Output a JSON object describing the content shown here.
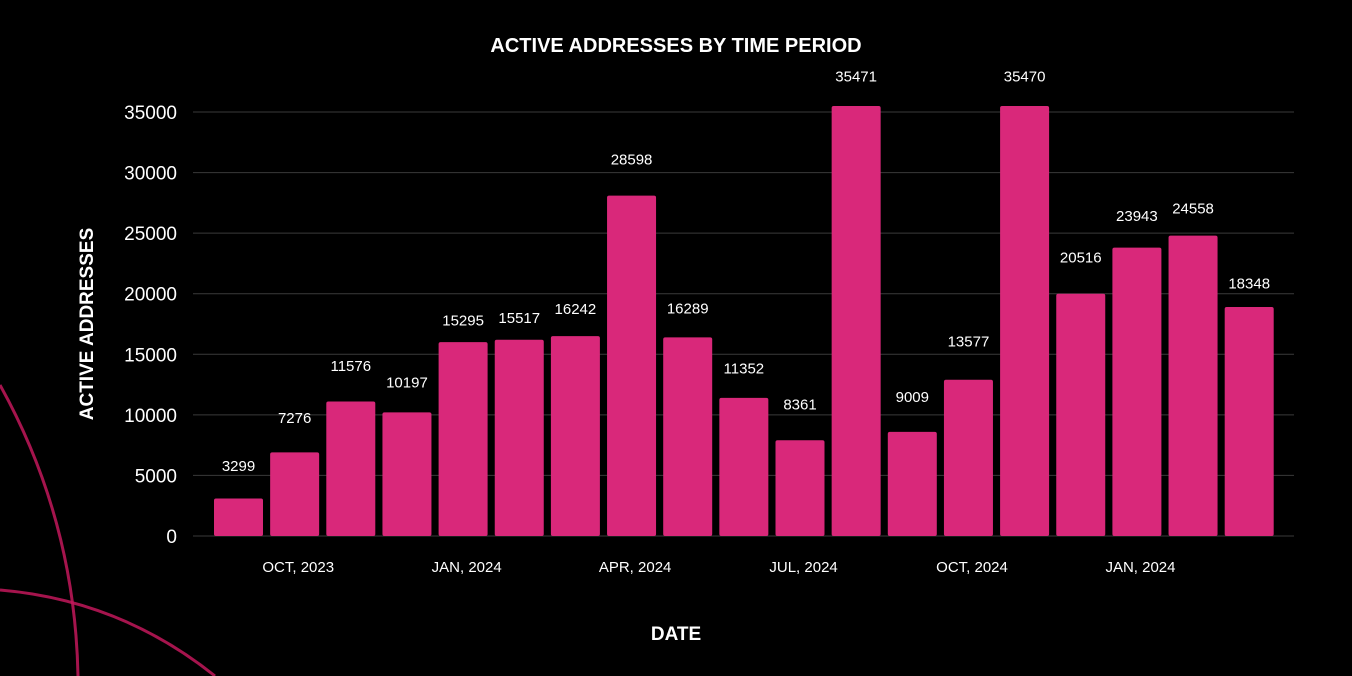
{
  "colors": {
    "background": "#000000",
    "bar": "#d9287a",
    "text": "#ffffff",
    "grid": "#3a3a3a",
    "decoration": "#c2185b"
  },
  "chart_data": {
    "type": "bar",
    "title": "ACTIVE ADDRESSES BY TIME PERIOD",
    "xlabel": "DATE",
    "ylabel": "ACTIVE ADDRESSES",
    "ylim": [
      0,
      35000
    ],
    "yticks": [
      0,
      5000,
      10000,
      15000,
      20000,
      25000,
      30000,
      35000
    ],
    "grid": true,
    "legend": "none",
    "x_tick_labels": [
      {
        "label": "OCT, 2023",
        "index": 1.5
      },
      {
        "label": "JAN, 2024",
        "index": 4.5
      },
      {
        "label": "APR, 2024",
        "index": 7.5
      },
      {
        "label": "JUL, 2024",
        "index": 10.5
      },
      {
        "label": "OCT, 2024",
        "index": 13.5
      },
      {
        "label": "JAN, 2024",
        "index": 16.5
      }
    ],
    "values": [
      3299,
      7276,
      11576,
      10197,
      15295,
      15517,
      16242,
      28598,
      16289,
      11352,
      8361,
      35471,
      9009,
      13577,
      35470,
      20516,
      23943,
      24558,
      18348
    ],
    "bar_heights_estimated": [
      3100,
      6900,
      11100,
      10200,
      16000,
      16200,
      16500,
      28100,
      16400,
      11400,
      7900,
      35500,
      8600,
      12900,
      35500,
      20000,
      23800,
      24800,
      18900
    ]
  }
}
